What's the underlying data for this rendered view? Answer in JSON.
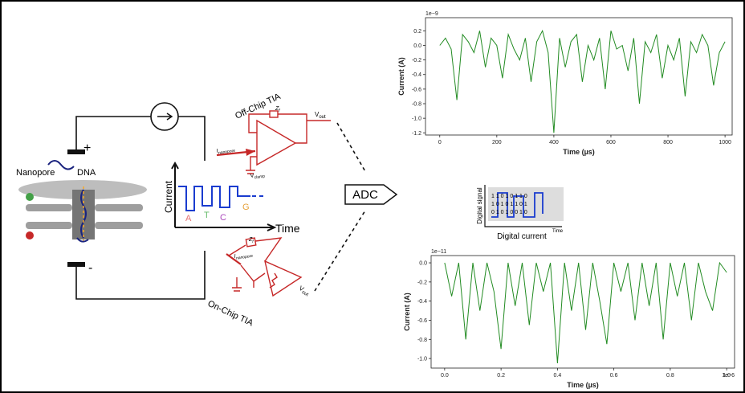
{
  "diagram": {
    "nanopore": "Nanopore",
    "dna": "DNA",
    "plus": "+",
    "minus": "-",
    "off_chip": "Off-Chip TIA",
    "on_chip": "On-Chip TIA",
    "current": "Current",
    "time": "Time",
    "bases": [
      "A",
      "T",
      "C",
      "G"
    ],
    "adc": "ADC",
    "v": "V",
    "out": "out",
    "clamp": "clamp",
    "i": "I",
    "nanopore_sub": "nanopore",
    "zf": "Z",
    "zf_sub": "f",
    "digital_signal": "Digital signal",
    "digital_current": "Digital current",
    "digital_time": "Time",
    "bits": [
      "1 1 0 1 0 1 1 0",
      "1 0 1 0 1 1 0 1",
      "0 1 0 1 0 0 1 0"
    ]
  },
  "chart_data": [
    {
      "type": "line",
      "color": "#228b22",
      "xlabel": "Time (µs)",
      "ylabel": "Current (A)",
      "y_offset_label": "1e−9",
      "x": [
        0,
        20,
        40,
        60,
        80,
        100,
        120,
        140,
        160,
        180,
        200,
        220,
        240,
        260,
        280,
        300,
        320,
        340,
        360,
        380,
        400,
        420,
        440,
        460,
        480,
        500,
        520,
        540,
        560,
        580,
        600,
        620,
        640,
        660,
        680,
        700,
        720,
        740,
        760,
        780,
        800,
        820,
        840,
        860,
        880,
        900,
        920,
        940,
        960,
        980,
        1000
      ],
      "values": [
        0.0,
        0.1,
        -0.05,
        -0.75,
        0.15,
        0.05,
        -0.1,
        0.2,
        -0.3,
        0.1,
        0.0,
        -0.45,
        0.15,
        -0.05,
        -0.2,
        0.1,
        -0.5,
        0.05,
        0.2,
        -0.1,
        -1.2,
        0.1,
        -0.3,
        0.05,
        0.15,
        -0.5,
        0.0,
        -0.2,
        0.1,
        -0.6,
        0.2,
        -0.05,
        0.0,
        -0.35,
        0.1,
        -0.8,
        0.05,
        -0.1,
        0.15,
        -0.45,
        0.0,
        -0.2,
        0.1,
        -0.7,
        0.05,
        -0.1,
        0.15,
        0.0,
        -0.55,
        -0.1,
        0.05
      ],
      "xlim": [
        -50,
        1025
      ],
      "ylim": [
        -1.23,
        0.38
      ],
      "xticks": [
        0,
        200,
        400,
        600,
        800,
        1000
      ],
      "yticks": [
        0.2,
        {
          "value": 0,
          "label": "0.0"
        },
        -0.2,
        -0.4,
        -0.6,
        -0.8,
        {
          "value": -1,
          "label": "-1.0"
        },
        -1.2
      ]
    },
    {
      "type": "line",
      "color": "#228b22",
      "xlabel": "Time (µs)",
      "ylabel": "Current (A)",
      "y_offset_label": "1e−11",
      "x_offset_label": "1e−6",
      "x": [
        0,
        0.025,
        0.05,
        0.075,
        0.1,
        0.125,
        0.15,
        0.175,
        0.2,
        0.225,
        0.25,
        0.275,
        0.3,
        0.325,
        0.35,
        0.375,
        0.4,
        0.425,
        0.45,
        0.475,
        0.5,
        0.525,
        0.55,
        0.575,
        0.6,
        0.625,
        0.65,
        0.675,
        0.7,
        0.725,
        0.75,
        0.775,
        0.8,
        0.825,
        0.85,
        0.875,
        0.9,
        0.925,
        0.95,
        0.975,
        1.0
      ],
      "values": [
        0.0,
        -0.35,
        0.0,
        -0.8,
        0.0,
        -0.5,
        0.0,
        -0.3,
        -0.9,
        0.0,
        -0.45,
        0.0,
        -0.65,
        0.0,
        -0.3,
        0.0,
        -1.05,
        0.0,
        -0.5,
        0.0,
        -0.7,
        0.0,
        -0.4,
        -0.85,
        0.0,
        -0.3,
        0.0,
        -0.6,
        0.0,
        -0.45,
        0.0,
        -0.8,
        0.0,
        -0.35,
        0.0,
        -0.6,
        0.0,
        -0.3,
        -0.5,
        0.0,
        -0.1
      ],
      "xlim": [
        -0.048,
        1.028
      ],
      "ylim": [
        -1.1,
        0.076
      ],
      "xticks": [
        {
          "value": 0,
          "label": "0.0"
        },
        0.2,
        0.4,
        0.6,
        0.8,
        {
          "value": 1,
          "label": "1.0"
        }
      ],
      "yticks": [
        {
          "value": 0,
          "label": "0.0"
        },
        -0.2,
        -0.4,
        -0.6,
        -0.8,
        {
          "value": -1,
          "label": "-1.0"
        }
      ]
    }
  ]
}
